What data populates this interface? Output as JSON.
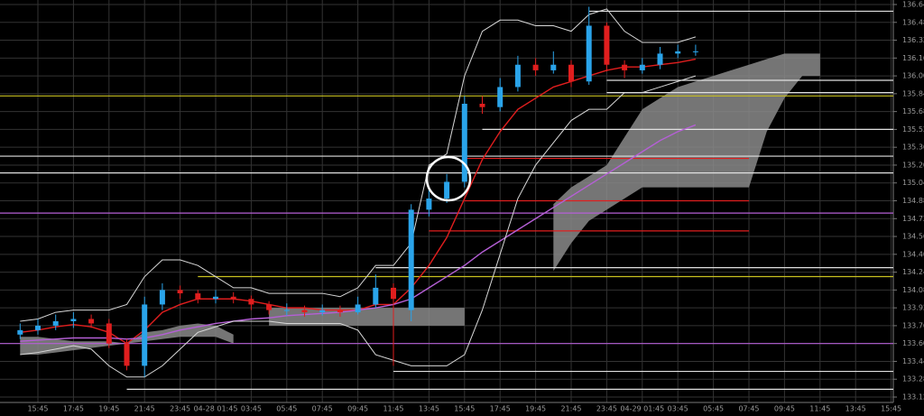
{
  "chart_data": {
    "type": "candlestick",
    "categories": [
      null,
      "15:45",
      null,
      "17:45",
      null,
      "19:45",
      null,
      "21:45",
      null,
      "23:45",
      null,
      "04-28 01:45",
      null,
      "03:45",
      null,
      "05:45",
      null,
      "07:45",
      null,
      "09:45",
      null,
      "11:45",
      null,
      "13:45",
      null,
      "15:45",
      null,
      "17:45",
      null,
      "19:45",
      null,
      "21:45",
      null,
      "23:45",
      null,
      "04-29 01:45",
      null,
      "03:45",
      null,
      "05:45",
      null,
      "07:45",
      null,
      "09:45",
      null,
      "11:45",
      null,
      "13:45",
      null,
      "15:45"
    ],
    "open": [
      133.68,
      133.72,
      133.76,
      133.8,
      133.82,
      133.78,
      133.6,
      133.4,
      133.95,
      134.08,
      134.05,
      134.0,
      134.02,
      134.0,
      133.95,
      133.9,
      133.9,
      133.88,
      133.9,
      133.88,
      133.95,
      134.1,
      133.9,
      134.8,
      134.9,
      135.05,
      135.75,
      135.72,
      135.9,
      136.1,
      136.05,
      136.1,
      135.95,
      136.45,
      136.1,
      136.05,
      136.1,
      136.2,
      136.22,
      null,
      null,
      null,
      null,
      null,
      null,
      null,
      null,
      null,
      null,
      null
    ],
    "high": [
      133.78,
      133.82,
      133.86,
      133.88,
      133.86,
      133.82,
      133.64,
      134.02,
      134.14,
      134.12,
      134.08,
      134.08,
      134.06,
      134.03,
      133.98,
      133.96,
      133.94,
      133.95,
      133.94,
      134.02,
      134.22,
      134.14,
      134.85,
      134.98,
      135.12,
      135.82,
      135.82,
      135.98,
      136.18,
      136.16,
      136.22,
      136.14,
      136.62,
      136.48,
      136.14,
      136.16,
      136.26,
      136.28,
      136.28,
      null,
      null,
      null,
      null,
      null,
      null,
      null,
      null,
      null,
      null,
      null
    ],
    "low": [
      133.64,
      133.68,
      133.72,
      133.74,
      133.74,
      133.56,
      133.36,
      133.3,
      133.9,
      134.0,
      133.96,
      133.96,
      133.96,
      133.9,
      133.86,
      133.85,
      133.84,
      133.85,
      133.84,
      133.86,
      133.92,
      133.4,
      133.8,
      134.74,
      134.86,
      135.0,
      135.66,
      135.68,
      135.86,
      136.0,
      136.02,
      135.9,
      135.92,
      136.04,
      135.98,
      136.02,
      136.06,
      136.16,
      136.18,
      null,
      null,
      null,
      null,
      null,
      null,
      null,
      null,
      null,
      null,
      null
    ],
    "close": [
      133.72,
      133.76,
      133.8,
      133.82,
      133.78,
      133.6,
      133.4,
      133.95,
      134.08,
      134.05,
      134.0,
      134.02,
      134.0,
      133.95,
      133.9,
      133.9,
      133.88,
      133.9,
      133.88,
      133.95,
      134.1,
      134.0,
      134.8,
      134.9,
      135.05,
      135.75,
      135.72,
      135.9,
      136.1,
      136.05,
      136.1,
      135.95,
      136.45,
      136.1,
      136.05,
      136.1,
      136.2,
      136.22,
      136.22,
      null,
      null,
      null,
      null,
      null,
      null,
      null,
      null,
      null,
      null,
      null
    ],
    "up_color": "#2aa4ea",
    "down_color": "#e01e1e",
    "series": [
      {
        "color": "#e01e1e",
        "values": [
          133.7,
          133.72,
          133.75,
          133.77,
          133.75,
          133.7,
          133.6,
          133.72,
          133.88,
          133.95,
          134.0,
          134.0,
          134.0,
          133.98,
          133.95,
          133.92,
          133.92,
          133.9,
          133.9,
          133.9,
          133.95,
          133.95,
          134.1,
          134.3,
          134.55,
          134.9,
          135.25,
          135.5,
          135.7,
          135.8,
          135.9,
          135.95,
          136.0,
          136.05,
          136.08,
          136.08,
          136.1,
          136.12,
          136.15,
          null,
          null,
          null,
          null,
          null,
          null,
          null,
          null,
          null,
          null,
          null
        ]
      },
      {
        "color": "#b55fd6",
        "values": [
          133.62,
          133.63,
          133.64,
          133.65,
          133.65,
          133.65,
          133.64,
          133.65,
          133.68,
          133.72,
          133.75,
          133.78,
          133.8,
          133.82,
          133.83,
          133.85,
          133.86,
          133.87,
          133.88,
          133.9,
          133.92,
          133.95,
          134.0,
          134.1,
          134.2,
          134.3,
          134.42,
          134.52,
          134.62,
          134.72,
          134.82,
          134.92,
          135.02,
          135.12,
          135.22,
          135.32,
          135.42,
          135.5,
          135.56,
          null,
          null,
          null,
          null,
          null,
          null,
          null,
          null,
          null,
          null,
          null
        ]
      },
      {
        "color": "#d8d8d8",
        "values": [
          133.8,
          133.82,
          133.88,
          133.9,
          133.9,
          133.9,
          133.95,
          134.2,
          134.35,
          134.35,
          134.3,
          134.2,
          134.1,
          134.1,
          134.05,
          134.05,
          134.05,
          134.05,
          134.02,
          134.1,
          134.3,
          134.3,
          134.5,
          135.2,
          135.3,
          136.0,
          136.4,
          136.5,
          136.5,
          136.45,
          136.45,
          136.4,
          136.55,
          136.6,
          136.4,
          136.3,
          136.3,
          136.3,
          136.35,
          null,
          null,
          null,
          null,
          null,
          null,
          null,
          null,
          null,
          null,
          null
        ]
      },
      {
        "color": "#d8d8d8",
        "values": [
          133.5,
          133.52,
          133.55,
          133.58,
          133.55,
          133.4,
          133.3,
          133.3,
          133.4,
          133.55,
          133.7,
          133.75,
          133.8,
          133.8,
          133.8,
          133.78,
          133.78,
          133.78,
          133.78,
          133.72,
          133.5,
          133.45,
          133.4,
          133.4,
          133.4,
          133.5,
          133.9,
          134.4,
          134.9,
          135.2,
          135.4,
          135.6,
          135.7,
          135.7,
          135.85,
          135.85,
          135.9,
          135.95,
          136.0,
          null,
          null,
          null,
          null,
          null,
          null,
          null,
          null,
          null,
          null,
          null
        ]
      }
    ],
    "cloud": {
      "color": "#8a8a8a",
      "top": [
        133.66,
        133.66,
        133.64,
        133.62,
        133.62,
        133.62,
        133.6,
        133.7,
        133.72,
        133.76,
        133.78,
        133.76,
        133.68,
        null,
        133.92,
        133.92,
        133.92,
        133.92,
        133.92,
        133.92,
        133.92,
        133.92,
        133.92,
        133.92,
        133.92,
        133.92,
        null,
        null,
        null,
        null,
        134.85,
        135.0,
        135.1,
        135.2,
        135.45,
        135.7,
        135.8,
        135.9,
        135.95,
        136.0,
        136.05,
        136.1,
        136.15,
        136.2,
        136.2,
        136.2,
        null,
        null,
        null,
        null
      ],
      "bottom": [
        133.5,
        133.5,
        133.52,
        133.54,
        133.56,
        133.58,
        133.6,
        133.62,
        133.64,
        133.66,
        133.66,
        133.66,
        133.6,
        null,
        133.76,
        133.76,
        133.76,
        133.76,
        133.76,
        133.76,
        133.76,
        133.76,
        133.76,
        133.76,
        133.76,
        133.76,
        null,
        null,
        null,
        null,
        134.25,
        134.5,
        134.7,
        134.8,
        134.9,
        135.0,
        135.0,
        135.0,
        135.0,
        135.0,
        135.0,
        135.0,
        135.5,
        135.8,
        136.0,
        136.0,
        null,
        null,
        null,
        null
      ]
    },
    "levels": [
      {
        "value": 136.58,
        "color": "#e0e0e0",
        "from": 32,
        "to": 49
      },
      {
        "value": 135.96,
        "color": "#e0e0e0",
        "from": 33,
        "to": 49
      },
      {
        "value": 135.85,
        "color": "#e0e0e0",
        "from": 33,
        "to": 49
      },
      {
        "value": 135.82,
        "color": "#c8c020",
        "from": 0,
        "to": 49
      },
      {
        "value": 135.52,
        "color": "#e0e0e0",
        "from": 26,
        "to": 49
      },
      {
        "value": 135.28,
        "color": "#e0e0e0",
        "from": 0,
        "to": 49
      },
      {
        "value": 135.26,
        "color": "#e01e1e",
        "from": 25,
        "to": 41
      },
      {
        "value": 135.13,
        "color": "#e0e0e0",
        "from": 0,
        "to": 49
      },
      {
        "value": 134.88,
        "color": "#e01e1e",
        "from": 25,
        "to": 41
      },
      {
        "value": 134.77,
        "color": "#b55fd6",
        "from": 0,
        "to": 49
      },
      {
        "value": 134.61,
        "color": "#e01e1e",
        "from": 23,
        "to": 41
      },
      {
        "value": 134.28,
        "color": "#e0e0e0",
        "from": 20,
        "to": 49
      },
      {
        "value": 134.2,
        "color": "#c8c020",
        "from": 10,
        "to": 49
      },
      {
        "value": 133.6,
        "color": "#b55fd6",
        "from": 0,
        "to": 49
      },
      {
        "value": 133.35,
        "color": "#e0e0e0",
        "from": 21,
        "to": 49
      },
      {
        "value": 133.19,
        "color": "#e0e0e0",
        "from": 6,
        "to": 49
      }
    ],
    "ylim": [
      133.12,
      136.64
    ],
    "yticks": [
      136.64,
      136.48,
      136.32,
      136.16,
      {
        "value": 136.0,
        "label": "136.00"
      },
      135.84,
      135.68,
      135.52,
      135.36,
      {
        "value": 135.2,
        "label": "135.20"
      },
      135.04,
      134.88,
      134.72,
      134.56,
      {
        "value": 134.4,
        "label": "134.40"
      },
      134.24,
      134.08,
      133.92,
      133.76,
      {
        "value": 133.6,
        "label": "133.60"
      },
      133.44,
      133.28,
      133.12
    ],
    "grid": true
  }
}
